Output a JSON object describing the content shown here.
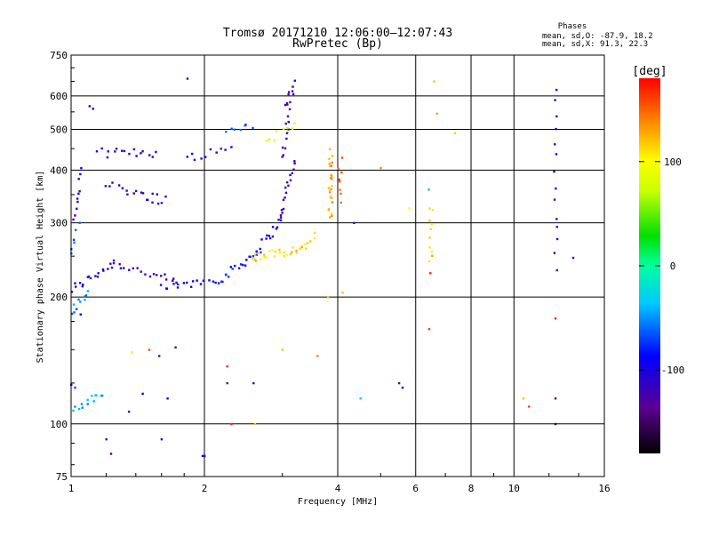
{
  "header": {
    "title_line1": "Tromsø 20171210 12:06:00–12:07:43",
    "title_line2": "RwPretec (Bp)"
  },
  "phases_box": {
    "heading": "Phases",
    "line_o": "mean, sd,O: -87.9, 18.2",
    "line_x": "mean, sd,X:  91.3, 22.3"
  },
  "colorbar": {
    "unit_label": "[deg]",
    "tick_labels": [
      "100",
      "0",
      "-100"
    ],
    "tick_values": [
      100,
      0,
      -100
    ],
    "range": [
      -180,
      180
    ]
  },
  "chart_data": {
    "type": "scatter",
    "title": "Tromsø 20171210 12:06:00–12:07:43",
    "subtitle": "RwPretec (Bp)",
    "xlabel": "Frequency [MHz]",
    "ylabel": "Stationary phase Virtual Height [km]",
    "x_scale": "log",
    "y_scale": "log",
    "xlim": [
      1,
      16
    ],
    "ylim": [
      75,
      750
    ],
    "x_ticks": [
      1,
      2,
      4,
      6,
      8,
      10,
      16
    ],
    "x_tick_labels": [
      "1",
      "2",
      "4",
      "6",
      "8",
      "10",
      "16"
    ],
    "x_grid": [
      2,
      4,
      6,
      8,
      10
    ],
    "y_ticks": [
      75,
      100,
      200,
      300,
      400,
      500,
      600,
      750
    ],
    "y_tick_labels": [
      "75",
      "100",
      "200",
      "300",
      "400",
      "500",
      "600",
      "750"
    ],
    "y_grid": [
      100,
      200,
      300,
      400,
      500,
      600
    ],
    "grid": true,
    "color_dimension": "phase [deg]",
    "traces": [
      {
        "start": [
          1.0,
          208
        ],
        "end": [
          1.25,
          242
        ],
        "phase": -110,
        "n": 18
      },
      {
        "start": [
          1.25,
          242
        ],
        "end": [
          1.75,
          215
        ],
        "phase": -115,
        "n": 18
      },
      {
        "start": [
          1.6,
          210
        ],
        "end": [
          2.2,
          222
        ],
        "phase": -95,
        "n": 18
      },
      {
        "start": [
          2.2,
          222
        ],
        "end": [
          2.6,
          255
        ],
        "phase": -80,
        "n": 16
      },
      {
        "start": [
          2.6,
          255
        ],
        "end": [
          2.95,
          300
        ],
        "phase": -95,
        "n": 14
      },
      {
        "start": [
          2.95,
          300
        ],
        "end": [
          3.18,
          420
        ],
        "phase": -115,
        "n": 18
      },
      {
        "start": [
          3.0,
          430
        ],
        "end": [
          3.12,
          560
        ],
        "phase": -120,
        "n": 12
      },
      {
        "start": [
          2.55,
          248
        ],
        "end": [
          3.35,
          262
        ],
        "phase": 115,
        "n": 26
      },
      {
        "start": [
          3.35,
          262
        ],
        "end": [
          3.55,
          280
        ],
        "phase": 110,
        "n": 6
      },
      {
        "start": [
          3.05,
          560
        ],
        "end": [
          3.2,
          645
        ],
        "phase": -125,
        "n": 10
      },
      {
        "start": [
          2.75,
          460
        ],
        "end": [
          3.2,
          520
        ],
        "phase": 85,
        "n": 8
      },
      {
        "start": [
          3.85,
          310
        ],
        "end": [
          3.85,
          440
        ],
        "phase": 130,
        "n": 24
      },
      {
        "start": [
          4.05,
          340
        ],
        "end": [
          4.05,
          420
        ],
        "phase": 150,
        "n": 8
      },
      {
        "start": [
          1.15,
          440
        ],
        "end": [
          1.55,
          440
        ],
        "phase": -110,
        "n": 16
      },
      {
        "start": [
          1.5,
          340
        ],
        "end": [
          1.62,
          342
        ],
        "phase": -110,
        "n": 5
      },
      {
        "start": [
          1.2,
          370
        ],
        "end": [
          1.55,
          345
        ],
        "phase": -115,
        "n": 14
      },
      {
        "start": [
          1.82,
          430
        ],
        "end": [
          2.3,
          450
        ],
        "phase": -105,
        "n": 10
      },
      {
        "start": [
          2.25,
          500
        ],
        "end": [
          2.55,
          515
        ],
        "phase": -60,
        "n": 7
      },
      {
        "start": [
          1.02,
          300
        ],
        "end": [
          1.05,
          400
        ],
        "phase": -100,
        "n": 10
      },
      {
        "start": [
          1.0,
          260
        ],
        "end": [
          1.04,
          295
        ],
        "phase": -60,
        "n": 6
      },
      {
        "start": [
          1.0,
          185
        ],
        "end": [
          1.1,
          205
        ],
        "phase": -55,
        "n": 10
      },
      {
        "start": [
          1.0,
          108
        ],
        "end": [
          1.18,
          118
        ],
        "phase": -45,
        "n": 14
      },
      {
        "start": [
          6.5,
          240
        ],
        "end": [
          6.5,
          330
        ],
        "phase": 120,
        "n": 10
      },
      {
        "start": [
          12.4,
          230
        ],
        "end": [
          12.4,
          630
        ],
        "phase": -110,
        "n": 14
      }
    ],
    "points": [
      {
        "x": 1.83,
        "y": 660,
        "phase": -120
      },
      {
        "x": 1.12,
        "y": 560,
        "phase": -100
      },
      {
        "x": 1.1,
        "y": 568,
        "phase": -100
      },
      {
        "x": 6.6,
        "y": 650,
        "phase": 120
      },
      {
        "x": 6.7,
        "y": 545,
        "phase": 130
      },
      {
        "x": 7.35,
        "y": 490,
        "phase": 115
      },
      {
        "x": 6.42,
        "y": 360,
        "phase": -40
      },
      {
        "x": 6.47,
        "y": 228,
        "phase": 170
      },
      {
        "x": 6.43,
        "y": 168,
        "phase": 160
      },
      {
        "x": 4.1,
        "y": 205,
        "phase": 120
      },
      {
        "x": 5.8,
        "y": 325,
        "phase": 100
      },
      {
        "x": 4.35,
        "y": 300,
        "phase": -80
      },
      {
        "x": 5.0,
        "y": 405,
        "phase": 140
      },
      {
        "x": 1.37,
        "y": 148,
        "phase": 80
      },
      {
        "x": 1.5,
        "y": 150,
        "phase": 160
      },
      {
        "x": 1.58,
        "y": 145,
        "phase": -130
      },
      {
        "x": 1.72,
        "y": 152,
        "phase": -120
      },
      {
        "x": 2.25,
        "y": 137,
        "phase": 170
      },
      {
        "x": 2.25,
        "y": 125,
        "phase": -130
      },
      {
        "x": 2.58,
        "y": 125,
        "phase": -100
      },
      {
        "x": 3.0,
        "y": 150,
        "phase": 60
      },
      {
        "x": 3.6,
        "y": 145,
        "phase": 140
      },
      {
        "x": 4.5,
        "y": 115,
        "phase": -30
      },
      {
        "x": 5.5,
        "y": 125,
        "phase": -120
      },
      {
        "x": 5.6,
        "y": 122,
        "phase": -110
      },
      {
        "x": 1.45,
        "y": 118,
        "phase": -90
      },
      {
        "x": 1.65,
        "y": 115,
        "phase": -100
      },
      {
        "x": 1.35,
        "y": 107,
        "phase": -110
      },
      {
        "x": 1.2,
        "y": 92,
        "phase": -120
      },
      {
        "x": 1.23,
        "y": 85,
        "phase": -140
      },
      {
        "x": 1.6,
        "y": 92,
        "phase": -120
      },
      {
        "x": 2.3,
        "y": 100,
        "phase": 170
      },
      {
        "x": 2.6,
        "y": 100,
        "phase": 120
      },
      {
        "x": 1.98,
        "y": 84,
        "phase": -110
      },
      {
        "x": 2.0,
        "y": 84,
        "phase": -80
      },
      {
        "x": 10.5,
        "y": 115,
        "phase": 120
      },
      {
        "x": 10.8,
        "y": 110,
        "phase": 160
      },
      {
        "x": 12.4,
        "y": 100,
        "phase": -160
      },
      {
        "x": 12.4,
        "y": 115,
        "phase": -130
      },
      {
        "x": 12.4,
        "y": 178,
        "phase": 170
      },
      {
        "x": 13.6,
        "y": 248,
        "phase": -130
      },
      {
        "x": 3.8,
        "y": 200,
        "phase": 120
      },
      {
        "x": 1.0,
        "y": 124,
        "phase": -90
      },
      {
        "x": 1.02,
        "y": 122,
        "phase": -70
      },
      {
        "x": 1.05,
        "y": 182,
        "phase": -90
      }
    ]
  }
}
